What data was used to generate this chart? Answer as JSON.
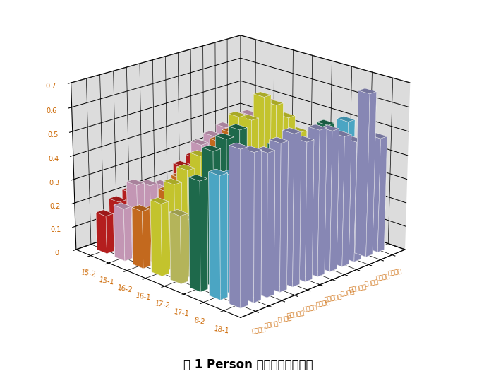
{
  "title": "图 1 Person 相关性分析数据图",
  "course_labels": [
    "无机化学",
    "有机化学",
    "分析化学",
    "高分子化学",
    "化工原理",
    "物理化学",
    "高分子物理",
    "研究方法",
    "合成工艺学",
    "加工原理",
    "反应工程",
    "关键技术"
  ],
  "class_labels": [
    "18-1",
    "8-2",
    "17-1",
    "17-2",
    "16-1",
    "16-2",
    "15-1",
    "15-2"
  ],
  "values": [
    [
      0.63,
      0.5,
      0.45,
      0.28,
      0.3,
      0.24,
      0.22,
      0.16
    ],
    [
      0.6,
      0.48,
      0.55,
      0.24,
      0.36,
      0.22,
      0.3,
      0.2
    ],
    [
      0.58,
      0.44,
      0.58,
      0.26,
      0.4,
      0.28,
      0.28,
      0.22
    ],
    [
      0.6,
      0.52,
      0.6,
      0.34,
      0.44,
      0.32,
      0.26,
      0.2
    ],
    [
      0.62,
      0.42,
      0.44,
      0.16,
      0.06,
      0.32,
      0.24,
      0.12
    ],
    [
      0.57,
      0.42,
      0.42,
      0.2,
      0.14,
      0.34,
      0.25,
      0.14
    ],
    [
      0.6,
      0.48,
      0.48,
      0.27,
      0.55,
      0.42,
      0.38,
      0.26
    ],
    [
      0.58,
      0.44,
      0.46,
      0.2,
      0.52,
      0.44,
      0.4,
      0.28
    ],
    [
      0.54,
      0.38,
      0.44,
      0.22,
      0.6,
      0.48,
      0.42,
      0.28
    ],
    [
      0.5,
      0.36,
      0.38,
      0.17,
      0.55,
      0.45,
      0.38,
      0.22
    ],
    [
      0.68,
      0.54,
      0.5,
      0.32,
      0.48,
      0.52,
      0.44,
      0.3
    ],
    [
      0.48,
      0.34,
      0.32,
      0.15,
      0.4,
      0.34,
      0.28,
      0.14
    ]
  ],
  "bar_colors": [
    "#9999CC",
    "#55BBDD",
    "#227755",
    "#CCCC66",
    "#DDDD33",
    "#DD7722",
    "#DDAACC",
    "#CC2222"
  ],
  "pane_color_bottom": "#C0C0C0",
  "pane_color_side": "#C0C0C0",
  "caption_bg": "#D5E8D0",
  "fig_bg": "#FFFFFF",
  "zlim": [
    0,
    0.7
  ],
  "zticks": [
    0.0,
    0.1,
    0.2,
    0.3,
    0.4,
    0.5,
    0.6,
    0.7
  ],
  "elev": 20,
  "azim": 225
}
